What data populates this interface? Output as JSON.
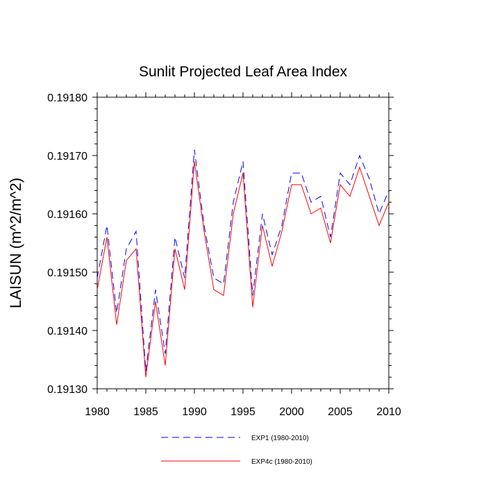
{
  "chart_data": {
    "type": "line",
    "title": "Sunlit Projected Leaf Area Index",
    "xlabel": "",
    "ylabel": "LAISUN  (m^2/m^2)",
    "xlim": [
      1980,
      2010
    ],
    "ylim": [
      0.1913,
      0.1918
    ],
    "x_ticks": [
      1980,
      1985,
      1990,
      1995,
      2000,
      2005,
      2010
    ],
    "x_tick_labels": [
      "1980",
      "1985",
      "1990",
      "1995",
      "2000",
      "2005",
      "2010"
    ],
    "y_ticks": [
      0.1913,
      0.1914,
      0.1915,
      0.1916,
      0.1917,
      0.1918
    ],
    "y_tick_labels": [
      "0.19130",
      "0.19140",
      "0.19150",
      "0.19160",
      "0.19170",
      "0.19180"
    ],
    "x": [
      1980,
      1981,
      1982,
      1983,
      1984,
      1985,
      1986,
      1987,
      1988,
      1989,
      1990,
      1991,
      1992,
      1993,
      1994,
      1995,
      1996,
      1997,
      1998,
      1999,
      2000,
      2001,
      2002,
      2003,
      2004,
      2005,
      2006,
      2007,
      2008,
      2009,
      2010
    ],
    "series": [
      {
        "name": "EXP1 (1980-2010)",
        "color": "#0000ff",
        "dash": "dashed",
        "values": [
          0.19149,
          0.19158,
          0.19143,
          0.19154,
          0.19157,
          0.19133,
          0.19147,
          0.19136,
          0.19156,
          0.19149,
          0.19171,
          0.19158,
          0.19149,
          0.19148,
          0.19162,
          0.19169,
          0.19146,
          0.1916,
          0.19153,
          0.19158,
          0.19167,
          0.19167,
          0.19162,
          0.19163,
          0.19156,
          0.19167,
          0.19165,
          0.1917,
          0.19166,
          0.1916,
          0.19164
        ]
      },
      {
        "name": "EXP4c (1980-2010)",
        "color": "#ff0000",
        "dash": "solid",
        "values": [
          0.19147,
          0.19156,
          0.19141,
          0.19152,
          0.19154,
          0.19132,
          0.19145,
          0.19134,
          0.19154,
          0.19147,
          0.19169,
          0.19157,
          0.19147,
          0.19146,
          0.1916,
          0.19167,
          0.19144,
          0.19158,
          0.19151,
          0.19157,
          0.19165,
          0.19165,
          0.1916,
          0.19161,
          0.19155,
          0.19165,
          0.19163,
          0.19168,
          0.19163,
          0.19158,
          0.19162
        ]
      }
    ],
    "legend_position": "bottom",
    "grid": false
  }
}
